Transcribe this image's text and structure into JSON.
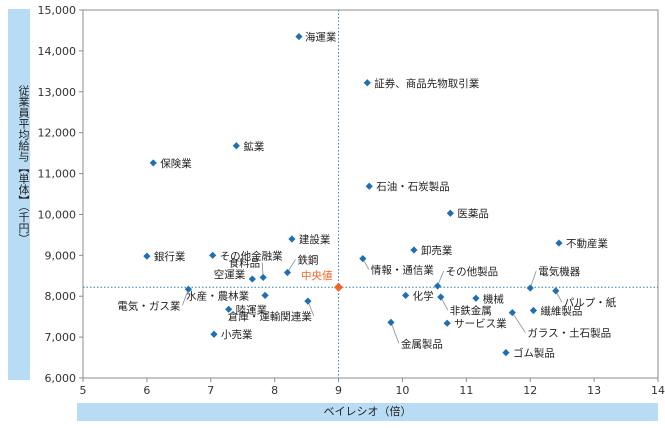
{
  "chart_data": {
    "type": "scatter",
    "xlabel": "ベイレシオ（倍）",
    "ylabel": "従業員平均給与【単体】（千円）",
    "xlim": [
      5,
      14
    ],
    "ylim": [
      6000,
      15000
    ],
    "x_ticks": [
      "5",
      "6",
      "7",
      "8",
      "9",
      "10",
      "11",
      "12",
      "13",
      "14"
    ],
    "y_ticks": [
      "6,000",
      "7,000",
      "8,000",
      "9,000",
      "10,000",
      "11,000",
      "12,000",
      "13,000",
      "14,000",
      "15,000"
    ],
    "grid": false,
    "point_color": "#1f6fb5",
    "median_color": "#f26522",
    "median_line": {
      "x": 9.0,
      "y": 8220
    },
    "median": {
      "name": "中央値",
      "x": 9.0,
      "y": 8220
    },
    "points": [
      {
        "name": "海運業",
        "x": 8.38,
        "y": 14350
      },
      {
        "name": "証券、商品先物取引業",
        "x": 9.45,
        "y": 13220
      },
      {
        "name": "鉱業",
        "x": 7.4,
        "y": 11680
      },
      {
        "name": "保険業",
        "x": 6.1,
        "y": 11260
      },
      {
        "name": "石油・石炭製品",
        "x": 9.48,
        "y": 10690
      },
      {
        "name": "医薬品",
        "x": 10.75,
        "y": 10030
      },
      {
        "name": "建設業",
        "x": 8.27,
        "y": 9400
      },
      {
        "name": "不動産業",
        "x": 12.45,
        "y": 9300
      },
      {
        "name": "卸売業",
        "x": 10.18,
        "y": 9130
      },
      {
        "name": "銀行業",
        "x": 6.0,
        "y": 8980
      },
      {
        "name": "その他金融業",
        "x": 7.03,
        "y": 9000
      },
      {
        "name": "鉄鋼",
        "x": 8.2,
        "y": 8580
      },
      {
        "name": "情報・通信業",
        "x": 9.38,
        "y": 8920
      },
      {
        "name": "食料品",
        "x": 7.82,
        "y": 8460
      },
      {
        "name": "空運業",
        "x": 7.65,
        "y": 8420
      },
      {
        "name": "その他製品",
        "x": 10.55,
        "y": 8250
      },
      {
        "name": "電気機器",
        "x": 12.0,
        "y": 8200
      },
      {
        "name": "電気・ガス業",
        "x": 6.65,
        "y": 8170
      },
      {
        "name": "水産・農林業",
        "x": 7.85,
        "y": 8020
      },
      {
        "name": "化学",
        "x": 10.05,
        "y": 8020
      },
      {
        "name": "パルプ・紙",
        "x": 12.4,
        "y": 8130
      },
      {
        "name": "機械",
        "x": 11.15,
        "y": 7950
      },
      {
        "name": "非鉄金属",
        "x": 10.6,
        "y": 7980
      },
      {
        "name": "倉庫・運輸関連業",
        "x": 8.52,
        "y": 7880
      },
      {
        "name": "陸運業",
        "x": 7.28,
        "y": 7680
      },
      {
        "name": "繊維製品",
        "x": 12.05,
        "y": 7650
      },
      {
        "name": "ガラス・土石製品",
        "x": 11.72,
        "y": 7600
      },
      {
        "name": "サービス業",
        "x": 10.7,
        "y": 7340
      },
      {
        "name": "金属製品",
        "x": 9.82,
        "y": 7360
      },
      {
        "name": "小売業",
        "x": 7.05,
        "y": 7070
      },
      {
        "name": "ゴム製品",
        "x": 11.62,
        "y": 6620
      }
    ]
  }
}
